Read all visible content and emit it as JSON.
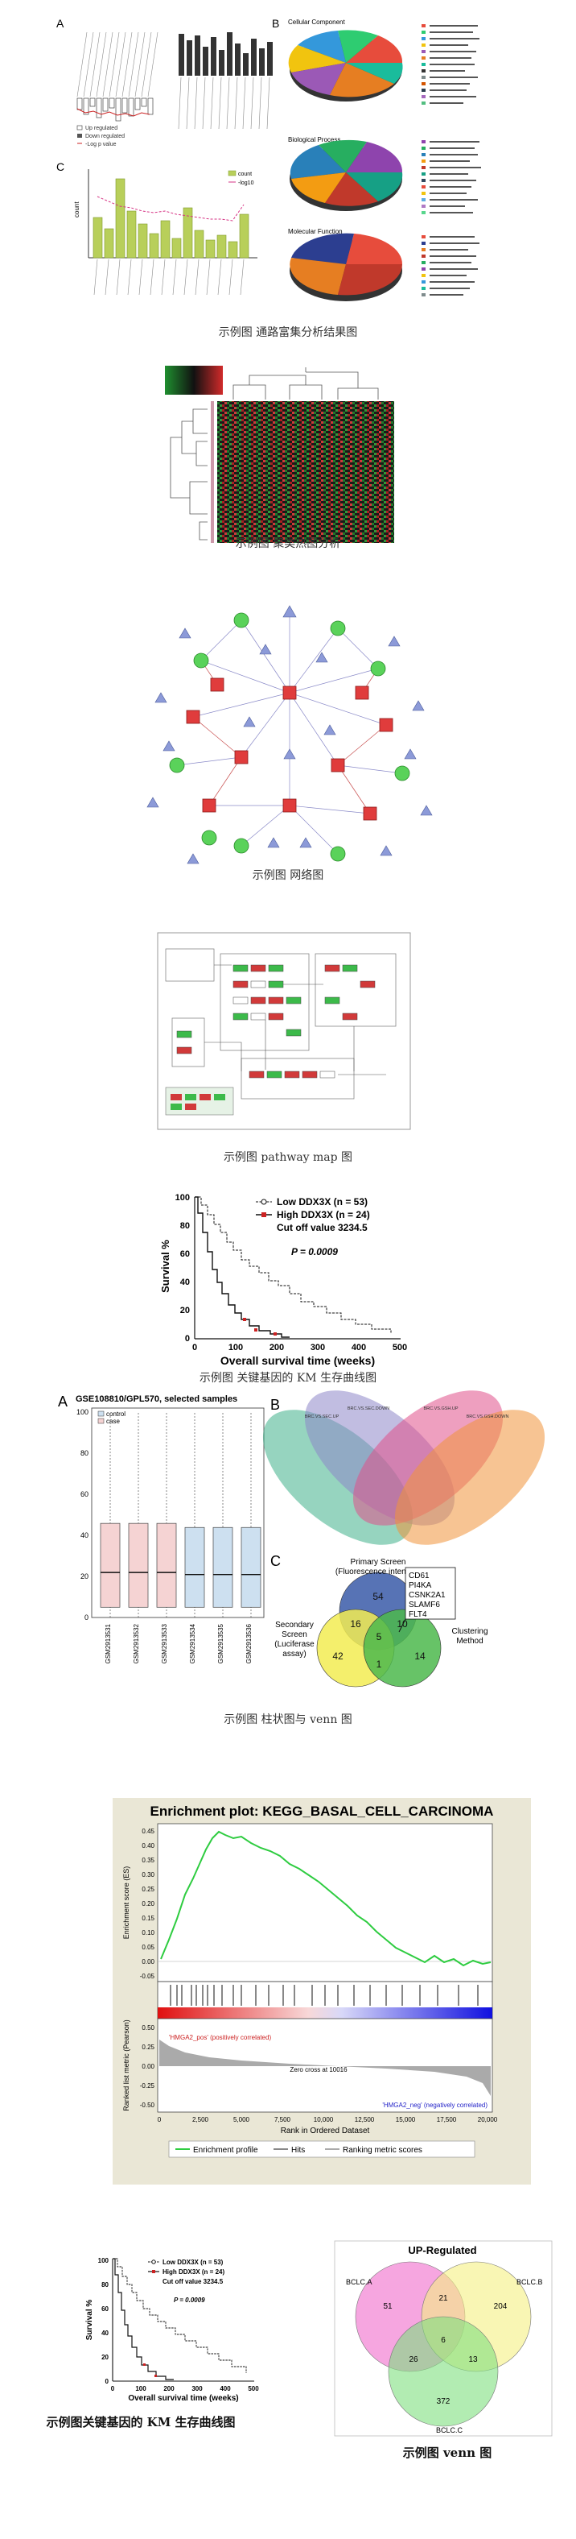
{
  "captions": {
    "pathway_enrichment": "示例图 通路富集分析结果图",
    "cluster_heatmap": "示例图 聚类热图分析",
    "network": "示例图 网络图",
    "pathway_map": "示例图 pathway map 图",
    "km_curve": "示例图 关键基因的 KM 生存曲线图",
    "bar_venn": "示例图 柱状图与 venn 图",
    "km_curve_small": "示例图关键基因的 KM 生存曲线图",
    "venn": "示例图 venn 图"
  },
  "fig1": {
    "panel_a": "A",
    "panel_b": "B",
    "panel_c": "C",
    "legend_up": "Up regulated",
    "legend_down": "Down regulated",
    "legend_log": "-Log p value",
    "cellular_component": "Cellular Component",
    "biological_process": "Biological Process",
    "molecular_function": "Molecular Function",
    "yaxis_count": "count",
    "legend_count": "count",
    "legend_logp": "-log10"
  },
  "km_large": {
    "legend_low": "Low  DDX3X (n = 53)",
    "legend_high": "High  DDX3X (n = 24)",
    "cutoff": "Cut off value 3234.5",
    "pvalue": "P = 0.0009",
    "ylabel": "Survival %",
    "xlabel": "Overall survival time (weeks)",
    "xticks": [
      "0",
      "100",
      "200",
      "300",
      "400",
      "500"
    ],
    "yticks": [
      "0",
      "20",
      "40",
      "60",
      "80",
      "100"
    ]
  },
  "boxplot": {
    "panel": "A",
    "title": "GSE108810/GPL570, selected samples",
    "legend_control": "control",
    "legend_case": "case",
    "yticks": [
      "0",
      "20",
      "40",
      "60",
      "80",
      "100"
    ],
    "samples": [
      "GSM2913531",
      "GSM2913532",
      "GSM2913533",
      "GSM2913534",
      "GSM2913535",
      "GSM2913536"
    ],
    "chart_data": {
      "type": "box",
      "categories": [
        "GSM2913531",
        "GSM2913532",
        "GSM2913533",
        "GSM2913534",
        "GSM2913535",
        "GSM2913536"
      ],
      "median": [
        22,
        22,
        22,
        21,
        21,
        21
      ],
      "q1": [
        5,
        5,
        5,
        5,
        5,
        5
      ],
      "q3": [
        46,
        46,
        46,
        44,
        44,
        44
      ],
      "groups": [
        "case",
        "case",
        "case",
        "control",
        "control",
        "control"
      ],
      "ylim": [
        0,
        100
      ]
    }
  },
  "venn4": {
    "panel": "B",
    "labels": [
      "BRC.VS.SEC.UP",
      "BRC.VS.SEC.DOWN",
      "BRC.VS.GSH.UP",
      "BRC.VS.GSH.DOWN"
    ]
  },
  "venn3": {
    "panel": "C",
    "primary": "Primary Screen",
    "primary_sub": "(Fluorescence intensity)",
    "secondary": "Secondary",
    "secondary2": "Screen",
    "secondary3": "(Luciferase",
    "secondary4": "assay)",
    "clustering": "Clustering",
    "clustering2": "Method",
    "n54": "54",
    "n16": "16",
    "n10": "10",
    "n5": "5",
    "n42": "42",
    "n1": "1",
    "n14": "14",
    "genes": [
      "CD61",
      "PI4KA",
      "CSNK2A1",
      "SLAMF6",
      "FLT4"
    ]
  },
  "gsea": {
    "title": "Enrichment plot: KEGG_BASAL_CELL_CARCINOMA",
    "ylabel_es": "Enrichment score (ES)",
    "ylabel_rank": "Ranked list metric (Pearson)",
    "xlabel": "Rank in Ordered Dataset",
    "pos_label": "'HMGA2_pos' (positively correlated)",
    "neg_label": "'HMGA2_neg' (negatively correlated)",
    "zero_cross": "Zero cross at 10016",
    "legend_profile": "Enrichment profile",
    "legend_hits": "Hits",
    "legend_metric": "Ranking metric scores",
    "es_ticks": [
      "0.45",
      "0.40",
      "0.35",
      "0.30",
      "0.25",
      "0.20",
      "0.15",
      "0.10",
      "0.05",
      "0.00",
      "-0.05"
    ],
    "rank_ticks": [
      "0.50",
      "0.25",
      "0.00",
      "-0.25",
      "-0.50"
    ],
    "x_ticks": [
      "0",
      "2,500",
      "5,000",
      "7,500",
      "10,000",
      "12,500",
      "15,000",
      "17,500",
      "20,000"
    ]
  },
  "km_small": {
    "legend_low": "Low  DDX3X (n = 53)",
    "legend_high": "High  DDX3X (n = 24)",
    "cutoff": "Cut off value 3234.5",
    "pvalue": "P = 0.0009",
    "ylabel": "Survival %",
    "xlabel": "Overall survival time (weeks)",
    "xticks": [
      "0",
      "100",
      "200",
      "300",
      "400",
      "500"
    ],
    "yticks": [
      "0",
      "20",
      "40",
      "60",
      "80",
      "100"
    ]
  },
  "venn_up": {
    "title": "UP-Regulated",
    "label_a": "BCLC.A",
    "label_b": "BCLC.B",
    "label_c": "BCLC.C",
    "n51": "51",
    "n21": "21",
    "n204": "204",
    "n6": "6",
    "n26": "26",
    "n13": "13",
    "n372": "372"
  }
}
